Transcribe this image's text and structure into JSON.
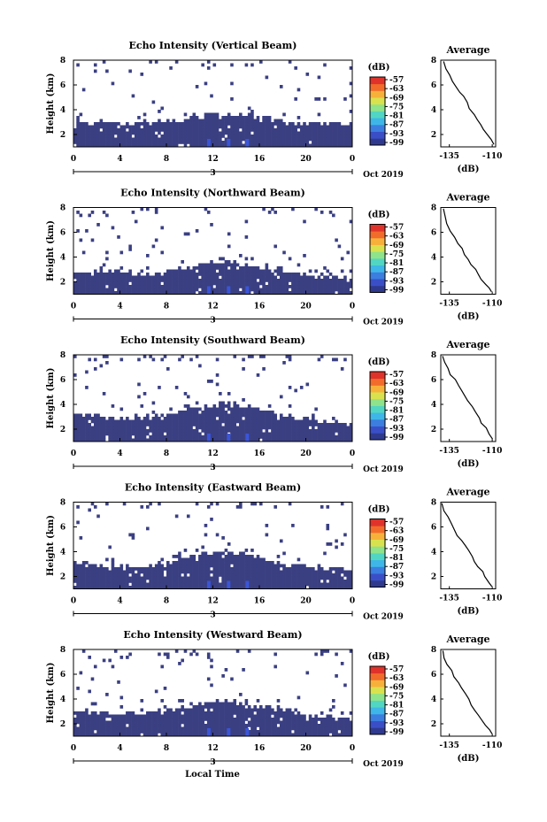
{
  "figure": {
    "xlabel_bottom": "Local Time",
    "date_label": "Oct 2019",
    "day_label": "3",
    "colorbar_unit": "(dB)",
    "colorbar_ticks": [
      "-57",
      "-63",
      "-69",
      "-75",
      "-81",
      "-87",
      "-93",
      "-99"
    ],
    "colorbar_colors": [
      "#2f3a8f",
      "#3a4fc7",
      "#3b7ee0",
      "#3fb6e8",
      "#52d6c4",
      "#8fe38a",
      "#d9e24e",
      "#f7b13a",
      "#f26b2b",
      "#e0322a"
    ],
    "heatmap_color": "#3a3f82",
    "cell_color_bright": "#3b55d8"
  },
  "chart_data": [
    {
      "type": "heatmap",
      "title": "Echo Intensity (Vertical Beam)",
      "ylabel": "Height (km)",
      "xticks": [
        "0",
        "4",
        "8",
        "12",
        "16",
        "20",
        "0"
      ],
      "yticks": [
        "2",
        "4",
        "6",
        "8"
      ],
      "xlim": [
        0,
        24
      ],
      "ylim": [
        1,
        8
      ],
      "boundary_km": [
        3.0,
        3.0,
        3.0,
        2.95,
        2.9,
        2.9,
        3.0,
        3.0,
        3.1,
        3.2,
        3.4,
        3.6,
        3.6,
        3.6,
        3.6,
        3.5,
        3.4,
        3.2,
        3.0,
        2.9,
        2.9,
        2.9,
        2.9,
        2.9
      ],
      "profile": {
        "title": "Average",
        "xlabel": "(dB)",
        "xticks": [
          "-135",
          "-110"
        ],
        "yticks": [
          "2",
          "4",
          "6",
          "8"
        ],
        "xlim": [
          -140,
          -108
        ],
        "ylim": [
          1,
          8
        ],
        "x": [
          -138,
          -137,
          -135,
          -133,
          -131,
          -129,
          -127,
          -125,
          -123,
          -121,
          -119,
          -117,
          -115,
          -113,
          -111,
          -109
        ],
        "y": [
          7.9,
          7.3,
          6.8,
          6.3,
          5.8,
          5.4,
          5.1,
          4.6,
          4.1,
          3.6,
          3.2,
          2.8,
          2.4,
          2.0,
          1.6,
          1.2
        ]
      }
    },
    {
      "type": "heatmap",
      "title": "Echo Intensity (Northward Beam)",
      "ylabel": "Height (km)",
      "xticks": [
        "0",
        "4",
        "8",
        "12",
        "16",
        "20",
        "0"
      ],
      "yticks": [
        "2",
        "4",
        "6",
        "8"
      ],
      "xlim": [
        0,
        24
      ],
      "ylim": [
        1,
        8
      ],
      "boundary_km": [
        2.6,
        2.7,
        2.8,
        2.9,
        2.9,
        2.6,
        2.6,
        2.7,
        2.9,
        3.1,
        3.3,
        3.5,
        3.6,
        3.6,
        3.5,
        3.4,
        3.1,
        3.0,
        2.8,
        2.6,
        2.5,
        2.4,
        2.4,
        2.4
      ],
      "profile": {
        "title": "Average",
        "xlabel": "(dB)",
        "xticks": [
          "-135",
          "-110"
        ],
        "yticks": [
          "2",
          "4",
          "6",
          "8"
        ],
        "xlim": [
          -140,
          -108
        ],
        "ylim": [
          1,
          8
        ],
        "x": [
          -138,
          -137,
          -136,
          -134,
          -132,
          -130,
          -128,
          -126,
          -124,
          -122,
          -120,
          -118,
          -116,
          -114,
          -112,
          -110
        ],
        "y": [
          7.9,
          7.2,
          6.7,
          6.1,
          5.6,
          5.1,
          4.7,
          4.2,
          3.8,
          3.4,
          3.0,
          2.6,
          2.2,
          1.8,
          1.5,
          1.2
        ]
      }
    },
    {
      "type": "heatmap",
      "title": "Echo Intensity (Southward Beam)",
      "ylabel": "Height (km)",
      "xticks": [
        "0",
        "4",
        "8",
        "12",
        "16",
        "20",
        "0"
      ],
      "yticks": [
        "2",
        "4",
        "6",
        "8"
      ],
      "xlim": [
        0,
        24
      ],
      "ylim": [
        1,
        8
      ],
      "boundary_km": [
        3.1,
        3.1,
        3.0,
        2.9,
        2.8,
        2.8,
        3.0,
        3.1,
        3.3,
        3.5,
        3.7,
        3.9,
        4.0,
        4.0,
        3.8,
        3.7,
        3.5,
        3.3,
        3.1,
        2.9,
        2.7,
        2.6,
        2.5,
        2.5
      ],
      "profile": {
        "title": "Average",
        "xlabel": "(dB)",
        "xticks": [
          "-135",
          "-110"
        ],
        "yticks": [
          "2",
          "4",
          "6",
          "8"
        ],
        "xlim": [
          -140,
          -108
        ],
        "ylim": [
          1,
          8
        ],
        "x": [
          -139,
          -138,
          -136,
          -134,
          -132,
          -130,
          -128,
          -126,
          -124,
          -122,
          -120,
          -118,
          -116,
          -114,
          -112,
          -110
        ],
        "y": [
          7.9,
          7.4,
          6.9,
          6.4,
          6.0,
          5.5,
          5.1,
          4.7,
          4.3,
          3.8,
          3.4,
          2.9,
          2.5,
          2.1,
          1.6,
          1.2
        ]
      }
    },
    {
      "type": "heatmap",
      "title": "Echo Intensity (Eastward Beam)",
      "ylabel": "Height (km)",
      "xticks": [
        "0",
        "4",
        "8",
        "12",
        "16",
        "20",
        "0"
      ],
      "yticks": [
        "2",
        "4",
        "6",
        "8"
      ],
      "xlim": [
        0,
        24
      ],
      "ylim": [
        1,
        8
      ],
      "boundary_km": [
        3.1,
        3.0,
        2.9,
        2.8,
        2.8,
        2.8,
        2.9,
        3.0,
        3.2,
        3.5,
        3.7,
        3.8,
        3.9,
        3.9,
        3.8,
        3.7,
        3.4,
        3.2,
        3.0,
        2.9,
        2.7,
        2.6,
        2.6,
        2.6
      ],
      "profile": {
        "title": "Average",
        "xlabel": "(dB)",
        "xticks": [
          "-135",
          "-110"
        ],
        "yticks": [
          "2",
          "4",
          "6",
          "8"
        ],
        "xlim": [
          -140,
          -108
        ],
        "ylim": [
          1,
          8
        ],
        "x": [
          -139,
          -138,
          -136,
          -134,
          -132,
          -130,
          -128,
          -126,
          -124,
          -122,
          -120,
          -118,
          -116,
          -114,
          -112,
          -110
        ],
        "y": [
          7.9,
          7.3,
          6.8,
          6.2,
          5.7,
          5.3,
          4.9,
          4.5,
          4.1,
          3.6,
          3.2,
          2.8,
          2.4,
          2.0,
          1.5,
          1.2
        ]
      }
    },
    {
      "type": "heatmap",
      "title": "Echo Intensity (Westward Beam)",
      "ylabel": "Height (km)",
      "xticks": [
        "0",
        "4",
        "8",
        "12",
        "16",
        "20",
        "0"
      ],
      "yticks": [
        "2",
        "4",
        "6",
        "8"
      ],
      "xlim": [
        0,
        24
      ],
      "ylim": [
        1,
        8
      ],
      "boundary_km": [
        2.9,
        3.0,
        2.9,
        2.8,
        2.7,
        2.8,
        2.9,
        3.0,
        3.2,
        3.4,
        3.6,
        3.7,
        3.8,
        3.8,
        3.7,
        3.5,
        3.3,
        3.1,
        3.0,
        2.8,
        2.6,
        2.5,
        2.5,
        2.5
      ],
      "profile": {
        "title": "Average",
        "xlabel": "(dB)",
        "xticks": [
          "-135",
          "-110"
        ],
        "yticks": [
          "2",
          "4",
          "6",
          "8"
        ],
        "xlim": [
          -140,
          -108
        ],
        "ylim": [
          1,
          8
        ],
        "x": [
          -139,
          -138,
          -136,
          -134,
          -132,
          -130,
          -128,
          -126,
          -124,
          -122,
          -120,
          -118,
          -116,
          -114,
          -112,
          -110
        ],
        "y": [
          7.9,
          7.3,
          6.8,
          6.3,
          5.8,
          5.3,
          4.9,
          4.4,
          4.0,
          3.5,
          3.1,
          2.7,
          2.3,
          1.9,
          1.5,
          1.2
        ]
      }
    }
  ]
}
